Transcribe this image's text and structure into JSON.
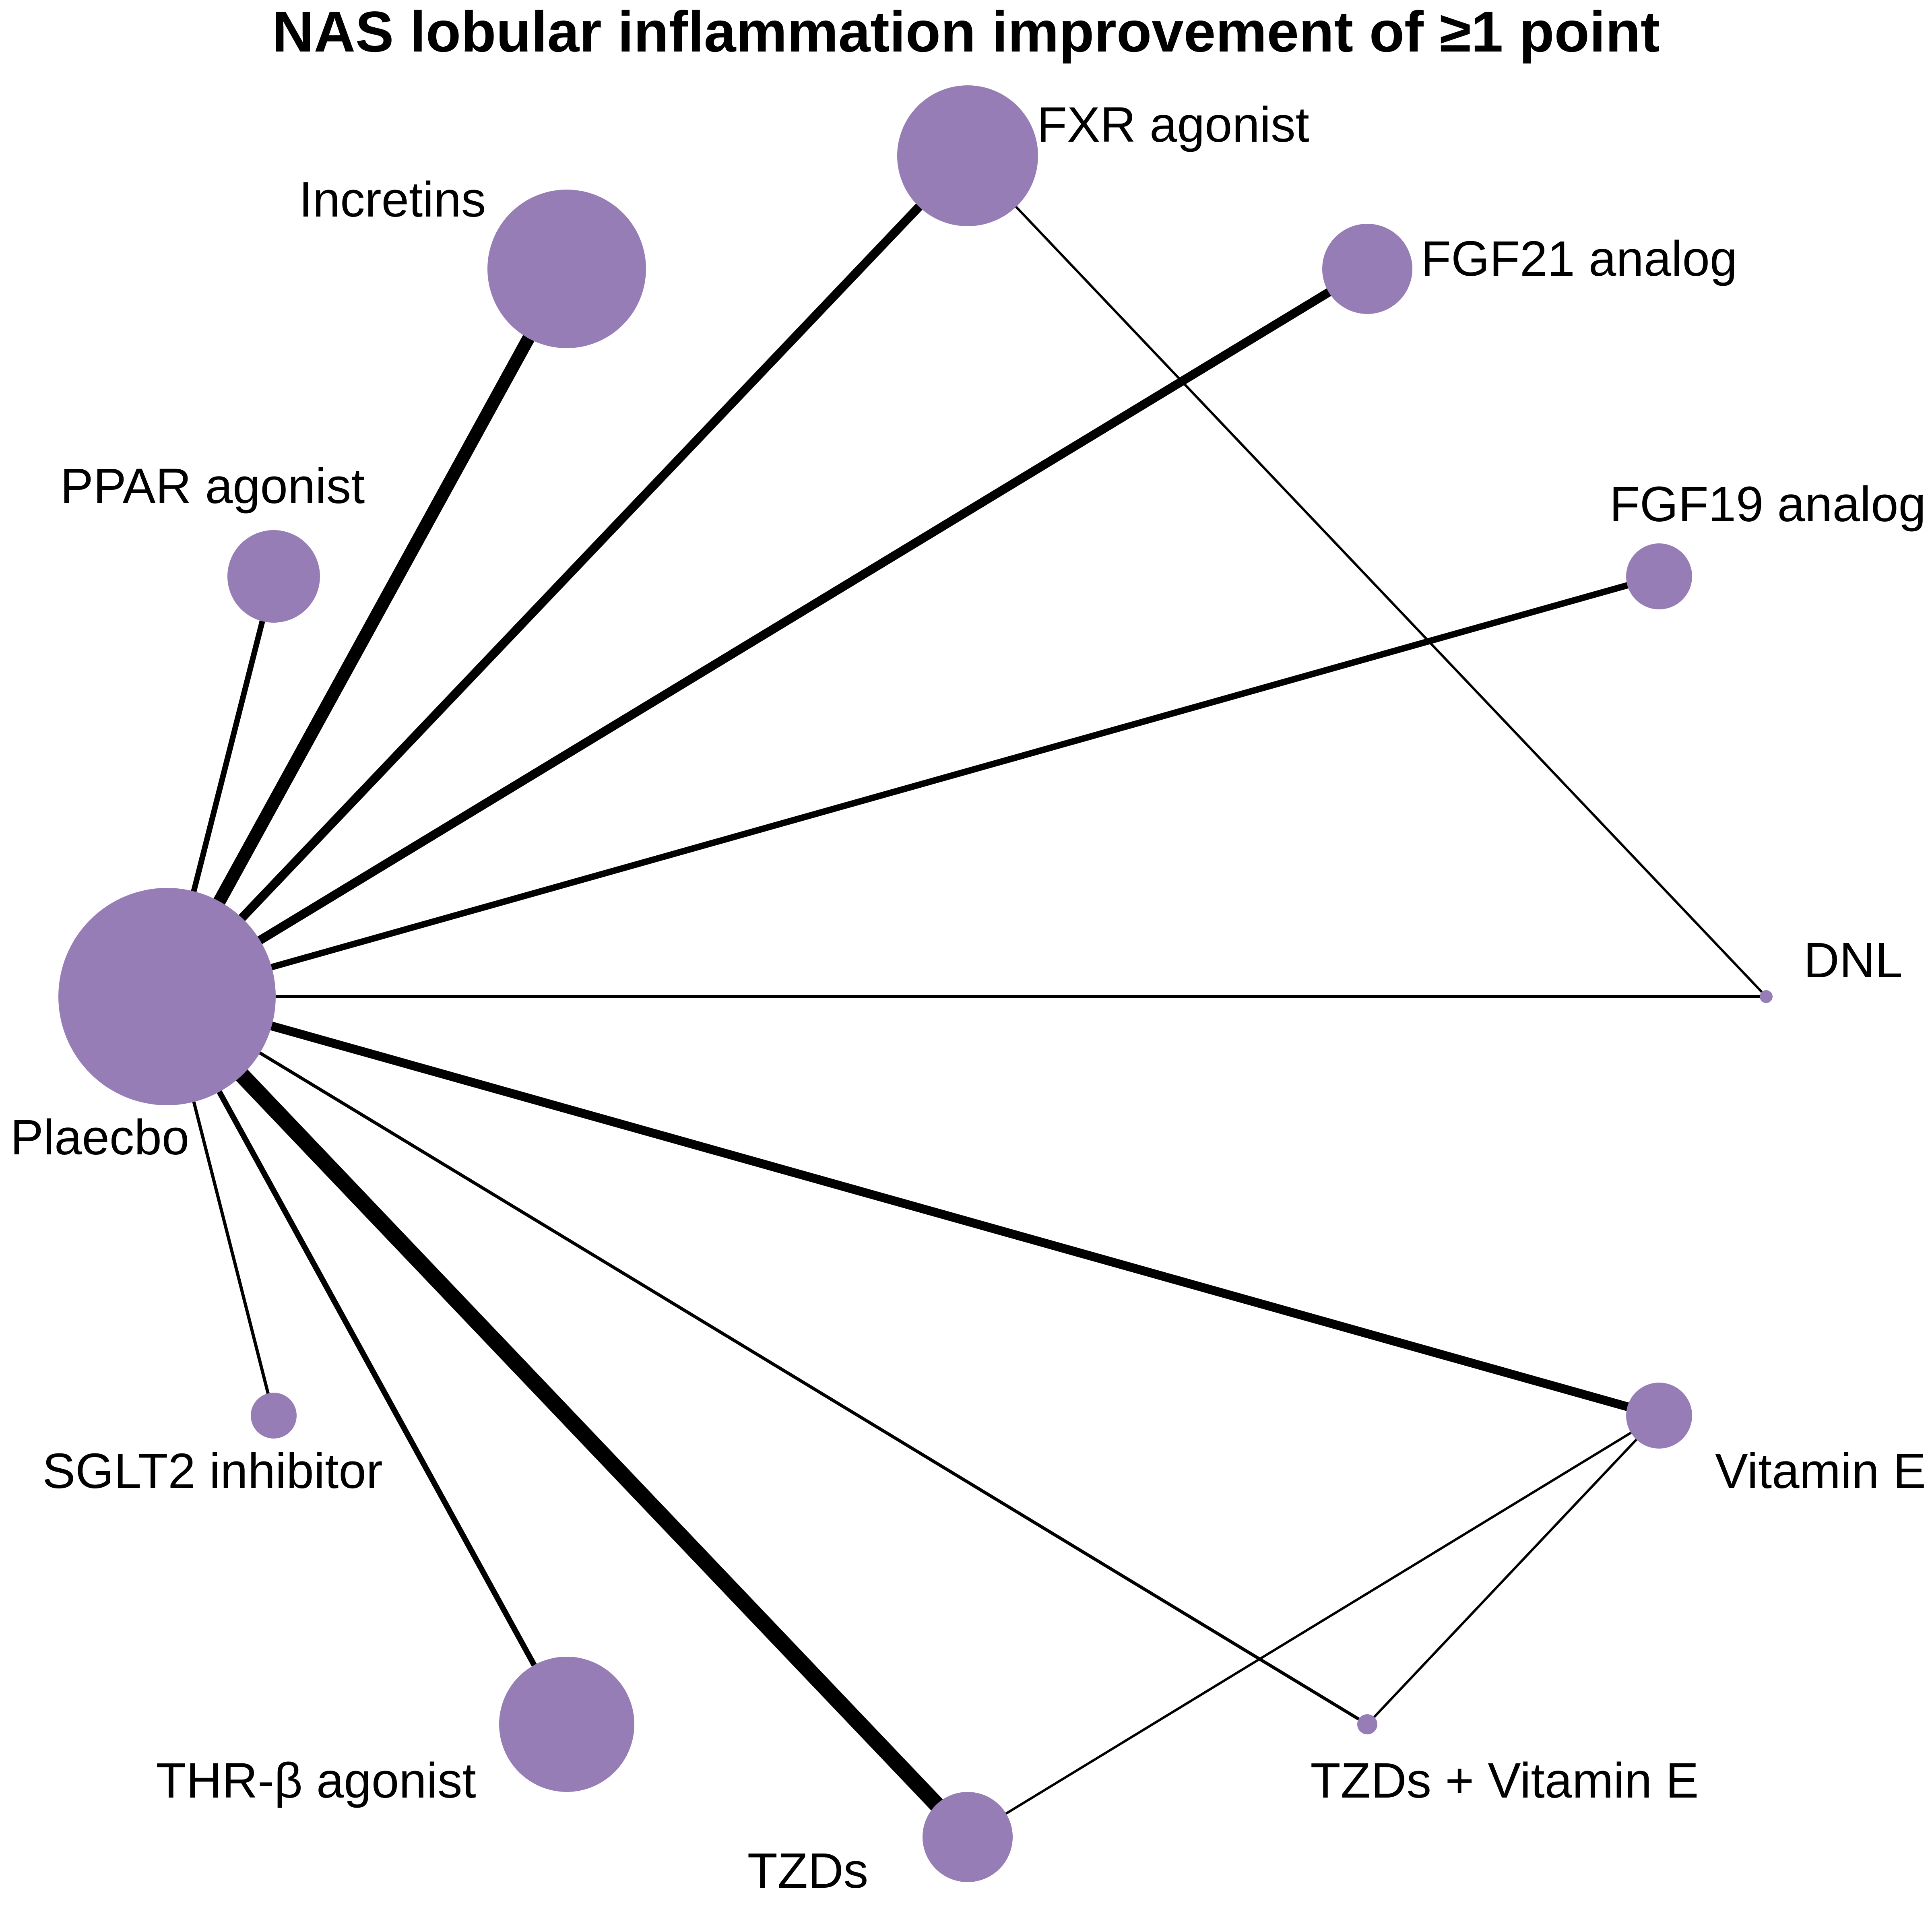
{
  "title": "NAS lobular inflammation improvement of ≥1 point",
  "colors": {
    "node": "#977DB6",
    "edge": "#000000",
    "background": "#FFFFFF"
  },
  "nodes": [
    {
      "id": "placebo",
      "label": "Plaecbo"
    },
    {
      "id": "ppar",
      "label": "PPAR agonist"
    },
    {
      "id": "incretins",
      "label": "Incretins"
    },
    {
      "id": "fxr",
      "label": "FXR agonist"
    },
    {
      "id": "fgf21",
      "label": "FGF21 analog"
    },
    {
      "id": "fgf19",
      "label": "FGF19 analog"
    },
    {
      "id": "dnl",
      "label": "DNL"
    },
    {
      "id": "vite",
      "label": "Vitamin E"
    },
    {
      "id": "tzdvite",
      "label": "TZDs + Vitamin E"
    },
    {
      "id": "tzds",
      "label": "TZDs"
    },
    {
      "id": "thrb",
      "label": "THR-β agonist"
    },
    {
      "id": "sglt2",
      "label": "SGLT2 inhibitor"
    }
  ],
  "edges": [
    {
      "source": "placebo",
      "target": "ppar"
    },
    {
      "source": "placebo",
      "target": "incretins"
    },
    {
      "source": "placebo",
      "target": "fxr"
    },
    {
      "source": "placebo",
      "target": "fgf21"
    },
    {
      "source": "placebo",
      "target": "fgf19"
    },
    {
      "source": "placebo",
      "target": "dnl"
    },
    {
      "source": "placebo",
      "target": "vite"
    },
    {
      "source": "placebo",
      "target": "tzdvite"
    },
    {
      "source": "placebo",
      "target": "tzds"
    },
    {
      "source": "placebo",
      "target": "thrb"
    },
    {
      "source": "placebo",
      "target": "sglt2"
    },
    {
      "source": "fxr",
      "target": "dnl"
    },
    {
      "source": "vite",
      "target": "tzds"
    },
    {
      "source": "vite",
      "target": "tzdvite"
    }
  ]
}
